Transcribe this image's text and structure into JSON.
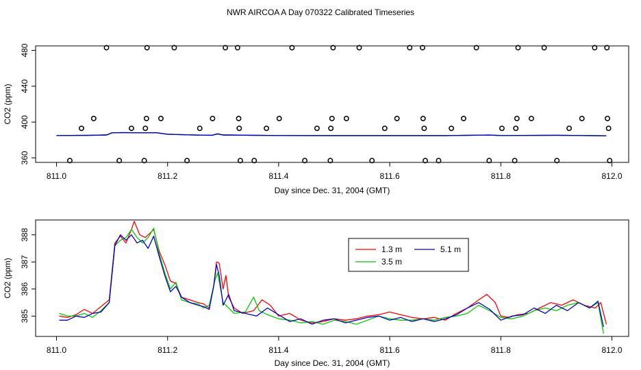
{
  "title": "NWR AIRCOA A  Day 070322  Calibrated Timeseries",
  "chart_data": [
    {
      "type": "scatter+line",
      "panel": "top",
      "xlabel": "Day since Dec. 31, 2004 (GMT)",
      "ylabel": "CO2 (ppm)",
      "xlim": [
        811.0,
        812.0
      ],
      "ylim": [
        355,
        485
      ],
      "xticks": [
        "811.0",
        "811.2",
        "811.4",
        "811.6",
        "811.8",
        "812.0"
      ],
      "yticks": [
        "360",
        "400",
        "440",
        "480"
      ],
      "xtick_values": [
        811.0,
        811.2,
        811.4,
        811.6,
        811.8,
        812.0
      ],
      "ytick_values": [
        360,
        400,
        440,
        480
      ],
      "points": [
        {
          "x": 811.024,
          "y": 357
        },
        {
          "x": 811.045,
          "y": 393
        },
        {
          "x": 811.067,
          "y": 404
        },
        {
          "x": 811.09,
          "y": 483
        },
        {
          "x": 811.113,
          "y": 357
        },
        {
          "x": 811.135,
          "y": 393
        },
        {
          "x": 811.158,
          "y": 357
        },
        {
          "x": 811.16,
          "y": 393
        },
        {
          "x": 811.162,
          "y": 404
        },
        {
          "x": 811.163,
          "y": 483
        },
        {
          "x": 811.188,
          "y": 404
        },
        {
          "x": 811.212,
          "y": 483
        },
        {
          "x": 811.235,
          "y": 357
        },
        {
          "x": 811.258,
          "y": 393
        },
        {
          "x": 811.281,
          "y": 404
        },
        {
          "x": 811.304,
          "y": 483
        },
        {
          "x": 811.326,
          "y": 483
        },
        {
          "x": 811.328,
          "y": 404
        },
        {
          "x": 811.329,
          "y": 393
        },
        {
          "x": 811.331,
          "y": 357
        },
        {
          "x": 811.356,
          "y": 357
        },
        {
          "x": 811.378,
          "y": 393
        },
        {
          "x": 811.401,
          "y": 404
        },
        {
          "x": 811.424,
          "y": 483
        },
        {
          "x": 811.447,
          "y": 357
        },
        {
          "x": 811.469,
          "y": 393
        },
        {
          "x": 811.493,
          "y": 357
        },
        {
          "x": 811.494,
          "y": 393
        },
        {
          "x": 811.496,
          "y": 404
        },
        {
          "x": 811.498,
          "y": 483
        },
        {
          "x": 811.522,
          "y": 404
        },
        {
          "x": 811.545,
          "y": 483
        },
        {
          "x": 811.568,
          "y": 357
        },
        {
          "x": 811.591,
          "y": 393
        },
        {
          "x": 811.613,
          "y": 404
        },
        {
          "x": 811.636,
          "y": 483
        },
        {
          "x": 811.659,
          "y": 483
        },
        {
          "x": 811.66,
          "y": 404
        },
        {
          "x": 811.662,
          "y": 393
        },
        {
          "x": 811.664,
          "y": 357
        },
        {
          "x": 811.688,
          "y": 357
        },
        {
          "x": 811.711,
          "y": 393
        },
        {
          "x": 811.733,
          "y": 404
        },
        {
          "x": 811.756,
          "y": 483
        },
        {
          "x": 811.779,
          "y": 357
        },
        {
          "x": 811.802,
          "y": 393
        },
        {
          "x": 811.825,
          "y": 357
        },
        {
          "x": 811.827,
          "y": 393
        },
        {
          "x": 811.829,
          "y": 404
        },
        {
          "x": 811.831,
          "y": 483
        },
        {
          "x": 811.855,
          "y": 404
        },
        {
          "x": 811.878,
          "y": 483
        },
        {
          "x": 811.901,
          "y": 357
        },
        {
          "x": 811.923,
          "y": 393
        },
        {
          "x": 811.946,
          "y": 404
        },
        {
          "x": 811.969,
          "y": 483
        },
        {
          "x": 811.991,
          "y": 483
        },
        {
          "x": 811.992,
          "y": 404
        },
        {
          "x": 811.994,
          "y": 393
        },
        {
          "x": 811.996,
          "y": 357
        }
      ],
      "series_line": {
        "x": [
          811.0,
          811.05,
          811.09,
          811.1,
          811.12,
          811.15,
          811.18,
          811.2,
          811.25,
          811.28,
          811.29,
          811.3,
          811.4,
          811.5,
          811.6,
          811.7,
          811.78,
          811.8,
          811.9,
          811.99
        ],
        "y": [
          385.0,
          385.1,
          385.6,
          388.0,
          388.2,
          388.0,
          388.1,
          386.4,
          385.5,
          385.3,
          386.8,
          385.6,
          385.0,
          384.9,
          384.9,
          384.9,
          385.5,
          385.0,
          385.3,
          384.7
        ]
      }
    },
    {
      "type": "line",
      "panel": "bottom",
      "xlabel": "Day since Dec. 31, 2004 (GMT)",
      "ylabel": "CO2 (ppm)",
      "xlim": [
        811.0,
        812.0
      ],
      "ylim": [
        384.25,
        388.55
      ],
      "xticks": [
        "811.0",
        "811.2",
        "811.4",
        "811.6",
        "811.8",
        "812.0"
      ],
      "yticks": [
        "385",
        "386",
        "387",
        "388"
      ],
      "xtick_values": [
        811.0,
        811.2,
        811.4,
        811.6,
        811.8,
        812.0
      ],
      "ytick_values": [
        385,
        386,
        387,
        388
      ],
      "legend_position": "top-right",
      "series": [
        {
          "name": "1.3 m",
          "color": "#ff0000",
          "x": [
            811.005,
            811.02,
            811.035,
            811.05,
            811.065,
            811.08,
            811.095,
            811.105,
            811.115,
            811.125,
            811.135,
            811.14,
            811.15,
            811.16,
            811.17,
            811.175,
            811.185,
            811.195,
            811.205,
            811.215,
            811.225,
            811.24,
            811.255,
            811.265,
            811.275,
            811.283,
            811.288,
            811.293,
            811.3,
            811.305,
            811.31,
            811.32,
            811.335,
            811.345,
            811.355,
            811.37,
            811.385,
            811.4,
            811.42,
            811.44,
            811.46,
            811.48,
            811.5,
            811.52,
            811.54,
            811.56,
            811.58,
            811.6,
            811.62,
            811.64,
            811.66,
            811.68,
            811.7,
            811.72,
            811.74,
            811.76,
            811.775,
            811.79,
            811.8,
            811.815,
            811.83,
            811.85,
            811.87,
            811.89,
            811.91,
            811.93,
            811.95,
            811.97,
            811.98,
            811.99
          ],
          "y": [
            385.0,
            384.95,
            385.05,
            385.25,
            385.1,
            385.35,
            385.6,
            387.7,
            387.95,
            387.7,
            388.2,
            388.5,
            388.0,
            387.9,
            388.1,
            388.2,
            387.4,
            386.9,
            386.3,
            386.2,
            385.7,
            385.6,
            385.5,
            385.45,
            385.3,
            386.1,
            387.0,
            386.95,
            386.0,
            386.5,
            385.7,
            385.3,
            385.1,
            385.15,
            385.2,
            385.6,
            385.4,
            385.0,
            385.1,
            384.85,
            384.75,
            384.8,
            384.9,
            384.85,
            384.9,
            385.0,
            385.05,
            385.15,
            385.05,
            384.95,
            384.9,
            384.95,
            384.85,
            385.1,
            385.3,
            385.6,
            385.8,
            385.5,
            385.0,
            384.95,
            385.05,
            385.1,
            385.3,
            385.5,
            385.4,
            385.6,
            385.4,
            385.3,
            385.5,
            384.7
          ]
        },
        {
          "name": "3.5 m",
          "color": "#00cc00",
          "x": [
            811.005,
            811.02,
            811.035,
            811.05,
            811.065,
            811.08,
            811.095,
            811.105,
            811.115,
            811.125,
            811.135,
            811.145,
            811.155,
            811.165,
            811.175,
            811.185,
            811.195,
            811.205,
            811.215,
            811.225,
            811.24,
            811.255,
            811.265,
            811.275,
            811.285,
            811.29,
            811.3,
            811.31,
            811.32,
            811.34,
            811.355,
            811.365,
            811.38,
            811.4,
            811.42,
            811.44,
            811.46,
            811.48,
            811.5,
            811.52,
            811.54,
            811.56,
            811.58,
            811.6,
            811.62,
            811.64,
            811.66,
            811.68,
            811.7,
            811.72,
            811.74,
            811.76,
            811.78,
            811.8,
            811.82,
            811.84,
            811.86,
            811.88,
            811.9,
            811.92,
            811.94,
            811.96,
            811.975,
            811.985
          ],
          "y": [
            385.1,
            385.0,
            385.0,
            385.1,
            384.95,
            385.2,
            385.5,
            387.6,
            387.8,
            387.9,
            388.2,
            387.9,
            387.7,
            387.9,
            388.25,
            387.3,
            386.6,
            386.0,
            386.25,
            385.6,
            385.5,
            385.45,
            385.3,
            385.4,
            386.3,
            386.6,
            385.5,
            385.3,
            385.1,
            385.15,
            385.7,
            385.2,
            385.05,
            384.9,
            384.85,
            384.75,
            384.8,
            384.7,
            384.85,
            384.8,
            384.7,
            384.85,
            385.0,
            384.9,
            384.85,
            384.85,
            384.9,
            384.85,
            384.95,
            385.0,
            385.1,
            385.4,
            385.2,
            384.95,
            384.9,
            385.0,
            385.2,
            385.3,
            385.2,
            385.4,
            385.5,
            385.3,
            385.5,
            384.35
          ]
        },
        {
          "name": "5.1 m",
          "color": "#0000cc",
          "x": [
            811.005,
            811.02,
            811.035,
            811.05,
            811.065,
            811.08,
            811.095,
            811.105,
            811.115,
            811.125,
            811.135,
            811.145,
            811.155,
            811.165,
            811.175,
            811.185,
            811.195,
            811.205,
            811.215,
            811.225,
            811.24,
            811.255,
            811.265,
            811.275,
            811.283,
            811.288,
            811.293,
            811.3,
            811.31,
            811.32,
            811.34,
            811.36,
            811.38,
            811.4,
            811.42,
            811.44,
            811.46,
            811.48,
            811.5,
            811.52,
            811.54,
            811.56,
            811.58,
            811.6,
            811.62,
            811.64,
            811.66,
            811.68,
            811.7,
            811.72,
            811.74,
            811.76,
            811.78,
            811.8,
            811.82,
            811.84,
            811.86,
            811.88,
            811.9,
            811.92,
            811.94,
            811.96,
            811.975,
            811.985
          ],
          "y": [
            384.85,
            384.85,
            385.0,
            384.95,
            385.1,
            385.15,
            385.5,
            387.6,
            388.0,
            387.8,
            388.0,
            387.7,
            387.8,
            387.5,
            387.95,
            387.2,
            386.5,
            385.9,
            386.1,
            385.7,
            385.5,
            385.4,
            385.35,
            385.25,
            386.1,
            386.9,
            386.5,
            385.4,
            385.8,
            385.2,
            385.1,
            385.0,
            385.3,
            385.05,
            384.8,
            384.9,
            384.7,
            384.85,
            384.9,
            384.75,
            384.85,
            384.95,
            385.0,
            384.85,
            384.95,
            384.8,
            384.9,
            384.8,
            384.9,
            385.05,
            385.3,
            385.5,
            385.25,
            384.85,
            385.0,
            385.05,
            385.3,
            385.1,
            385.4,
            385.2,
            385.5,
            385.3,
            385.55,
            384.6
          ]
        }
      ]
    }
  ]
}
